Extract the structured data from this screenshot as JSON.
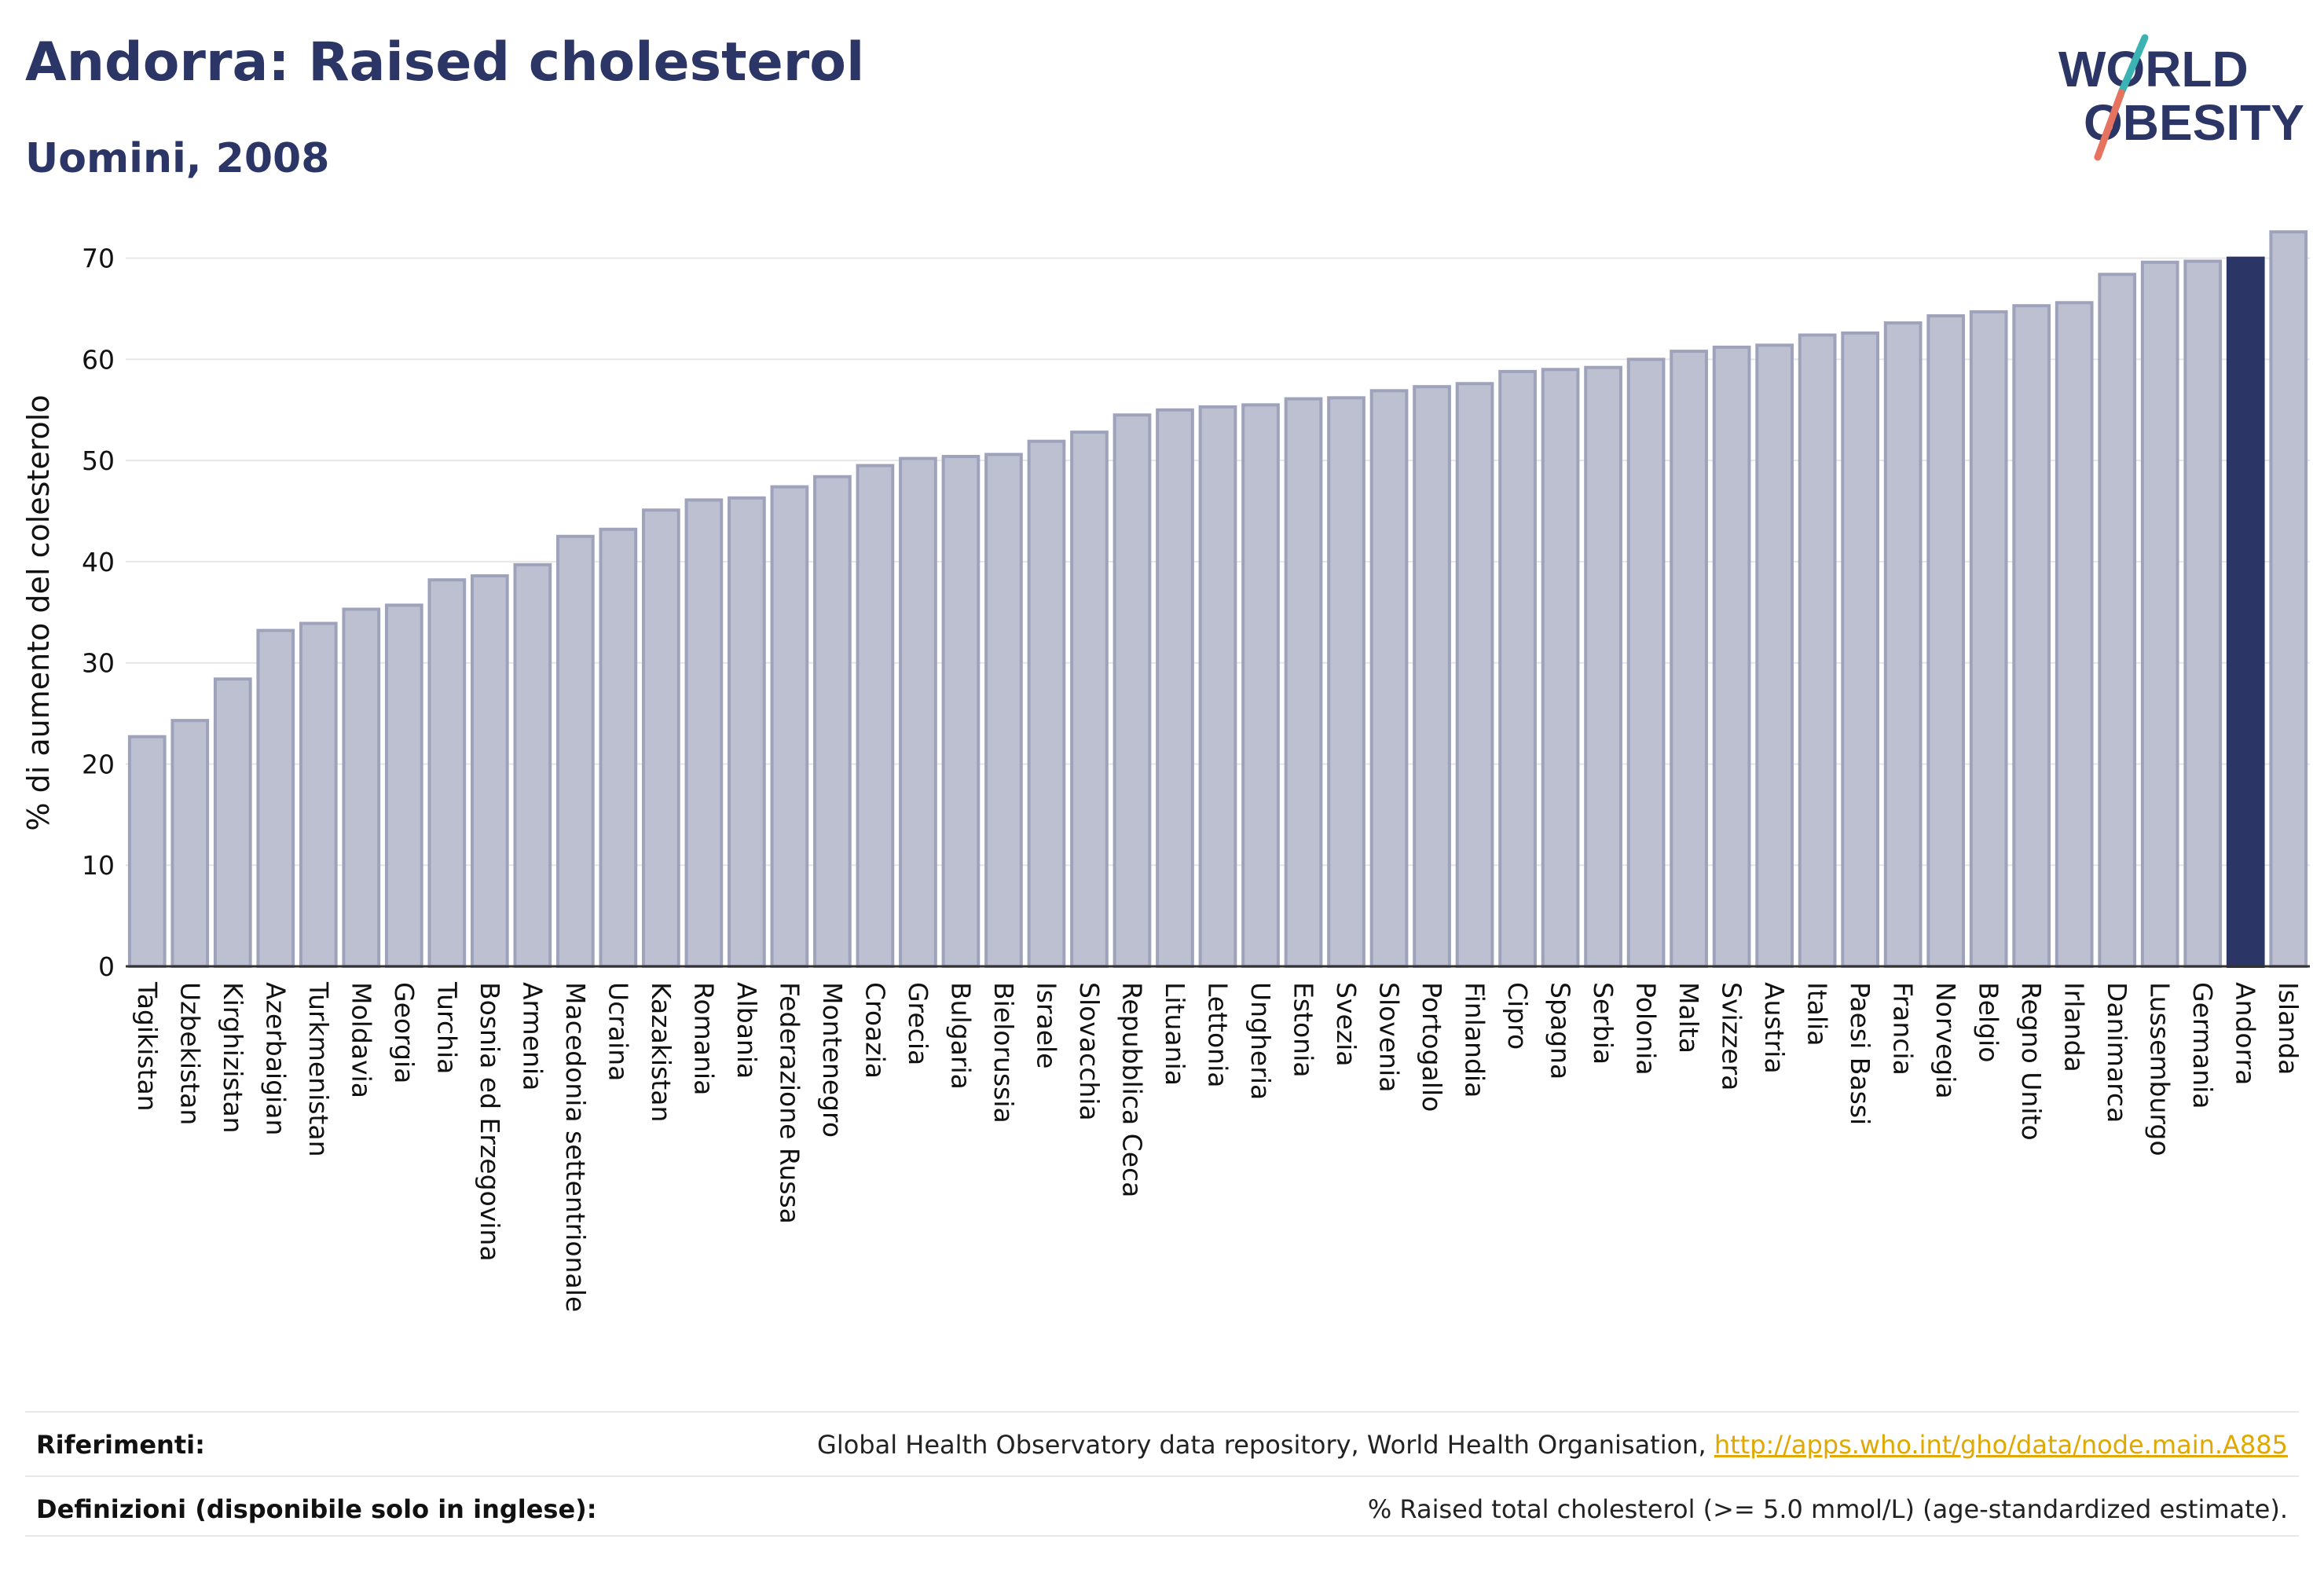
{
  "header": {
    "title": "Andorra: Raised cholesterol",
    "subtitle": "Uomini, 2008"
  },
  "logo": {
    "line1": "WORLD",
    "line2": "OBESITY",
    "color_primary": "#2b3566",
    "color_slash_top": "#3bb3b3",
    "color_slash_bottom": "#e5735f"
  },
  "colors": {
    "bar_default": "#bcc0d1",
    "bar_default_stroke": "#9ea3bb",
    "bar_highlight": "#2b3566",
    "grid": "#e6e6e6",
    "axis": "#333333"
  },
  "chart_data": {
    "type": "bar",
    "title": "Andorra: Raised cholesterol",
    "subtitle": "Uomini, 2008",
    "xlabel": "",
    "ylabel": "% di aumento del colesterolo",
    "ylim": [
      0,
      73
    ],
    "yticks": [
      0,
      10,
      20,
      30,
      40,
      50,
      60,
      70
    ],
    "grid": true,
    "highlight": "Andorra",
    "categories": [
      "Tagikistan",
      "Uzbekistan",
      "Kirghizistan",
      "Azerbaigian",
      "Turkmenistan",
      "Moldavia",
      "Georgia",
      "Turchia",
      "Bosnia ed Erzegovina",
      "Armenia",
      "Macedonia settentrionale",
      "Ucraina",
      "Kazakistan",
      "Romania",
      "Albania",
      "Federazione Russa",
      "Montenegro",
      "Croazia",
      "Grecia",
      "Bulgaria",
      "Bielorussia",
      "Israele",
      "Slovacchia",
      "Repubblica Ceca",
      "Lituania",
      "Lettonia",
      "Ungheria",
      "Estonia",
      "Svezia",
      "Slovenia",
      "Portogallo",
      "Finlandia",
      "Cipro",
      "Spagna",
      "Serbia",
      "Polonia",
      "Malta",
      "Svizzera",
      "Austria",
      "Italia",
      "Paesi Bassi",
      "Francia",
      "Norvegia",
      "Belgio",
      "Regno Unito",
      "Irlanda",
      "Danimarca",
      "Lussemburgo",
      "Germania",
      "Andorra",
      "Islanda"
    ],
    "values": [
      22.7,
      24.3,
      28.4,
      33.2,
      33.9,
      35.3,
      35.7,
      38.2,
      38.6,
      39.7,
      42.5,
      43.2,
      45.1,
      46.1,
      46.3,
      47.4,
      48.4,
      49.5,
      50.2,
      50.4,
      50.6,
      51.9,
      52.8,
      54.5,
      55.0,
      55.3,
      55.5,
      56.1,
      56.2,
      56.9,
      57.3,
      57.6,
      58.8,
      59.0,
      59.2,
      60.0,
      60.8,
      61.2,
      61.4,
      62.4,
      62.6,
      63.6,
      64.3,
      64.7,
      65.3,
      65.6,
      68.4,
      69.6,
      69.7,
      70.0,
      72.6
    ]
  },
  "footer": {
    "references_label": "Riferimenti:",
    "references_text": "Global Health Observatory data repository, World Health Organisation, ",
    "references_link": "http://apps.who.int/gho/data/node.main.A885",
    "definitions_label": "Definizioni (disponibile solo in inglese):",
    "definitions_text": "% Raised total cholesterol (>= 5.0 mmol/L) (age-standardized estimate)."
  }
}
